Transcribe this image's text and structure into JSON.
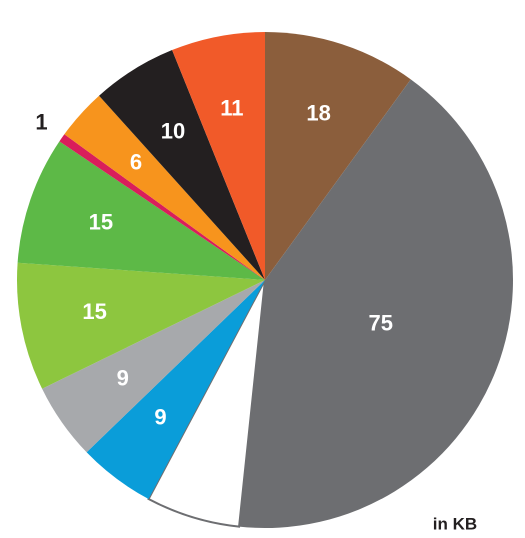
{
  "chart_data": {
    "type": "pie",
    "values": [
      18,
      75,
      11,
      9,
      9,
      15,
      15,
      1,
      6,
      10,
      11
    ],
    "value_labels": [
      "18",
      "75",
      null,
      "9",
      "9",
      "15",
      "15",
      "1",
      "6",
      "10",
      "11"
    ],
    "colors": [
      "#8b5e3c",
      "#6d6e71",
      "#ffffff",
      "#0a9dd9",
      "#a7a9ac",
      "#8dc63f",
      "#5db947",
      "#d91e5b",
      "#f7941d",
      "#231f20",
      "#f15a29"
    ],
    "annotation": "in KB"
  }
}
